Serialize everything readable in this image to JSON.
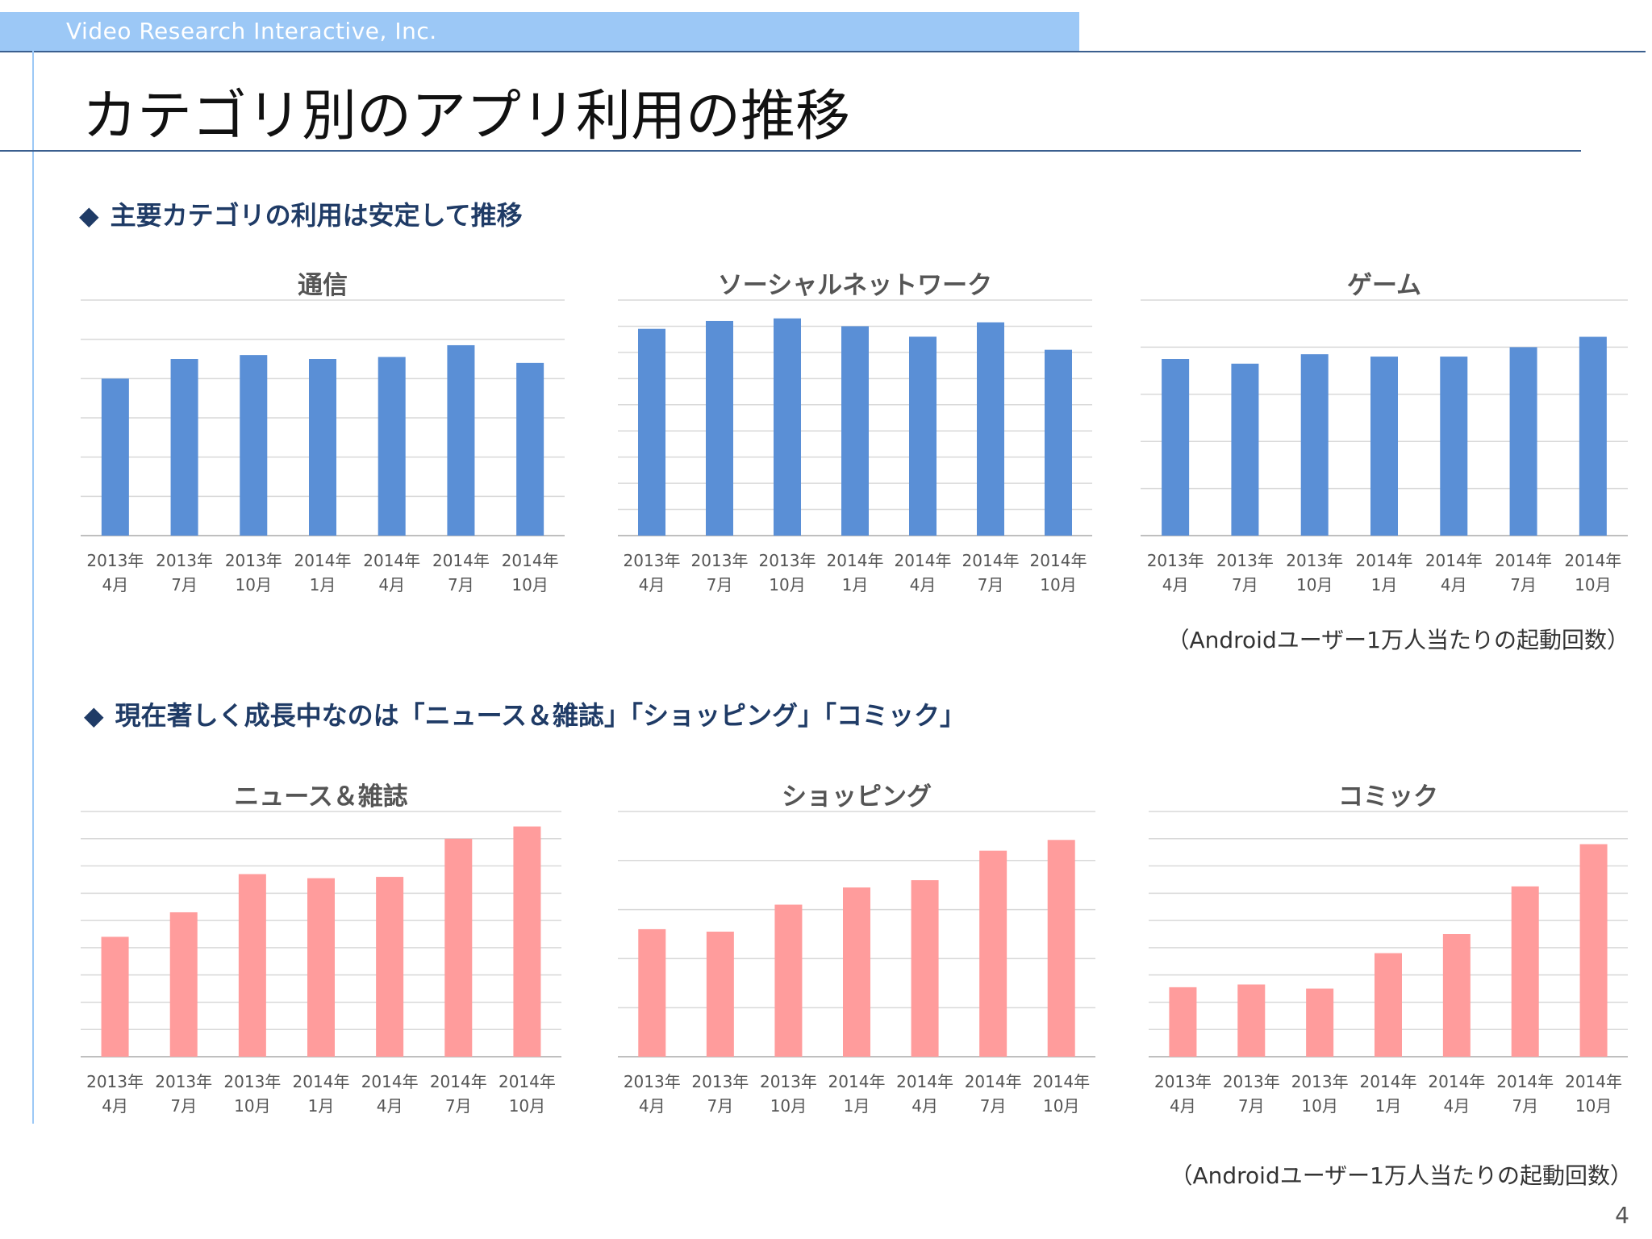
{
  "header": {
    "company": "Video Research Interactive, Inc.",
    "title": "カテゴリ別のアプリ利用の推移"
  },
  "sections": [
    {
      "bullet": "◆",
      "heading": "主要カテゴリの利用は安定して推移",
      "note": "（Androidユーザー1万人当たりの起動回数）"
    },
    {
      "bullet": "◆",
      "heading": "現在著しく成長中なのは「ニュース＆雑誌」「ショッピング」「コミック」",
      "note": "（Androidユーザー1万人当たりの起動回数）"
    }
  ],
  "page_number": "4",
  "colors": {
    "blue_bar": "#5a8fd6",
    "pink_bar": "#ff9c9c",
    "grid": "#d9d9d9",
    "axis": "#bfbfbf"
  },
  "chart_data": [
    {
      "type": "bar",
      "title": "通信",
      "categories": [
        [
          "2013年",
          "4月"
        ],
        [
          "2013年",
          "7月"
        ],
        [
          "2013年",
          "10月"
        ],
        [
          "2014年",
          "1月"
        ],
        [
          "2014年",
          "4月"
        ],
        [
          "2014年",
          "7月"
        ],
        [
          "2014年",
          "10月"
        ]
      ],
      "values": [
        4.0,
        4.5,
        4.6,
        4.5,
        4.55,
        4.85,
        4.4
      ],
      "ylim": [
        0,
        6
      ],
      "grid_lines": 6,
      "color": "blue"
    },
    {
      "type": "bar",
      "title": "ソーシャルネットワーク",
      "categories": [
        [
          "2013年",
          "4月"
        ],
        [
          "2013年",
          "7月"
        ],
        [
          "2013年",
          "10月"
        ],
        [
          "2014年",
          "1月"
        ],
        [
          "2014年",
          "4月"
        ],
        [
          "2014年",
          "7月"
        ],
        [
          "2014年",
          "10月"
        ]
      ],
      "values": [
        7.9,
        8.2,
        8.3,
        8.0,
        7.6,
        8.15,
        7.1
      ],
      "ylim": [
        0,
        9
      ],
      "grid_lines": 9,
      "color": "blue"
    },
    {
      "type": "bar",
      "title": "ゲーム",
      "categories": [
        [
          "2013年",
          "4月"
        ],
        [
          "2013年",
          "7月"
        ],
        [
          "2013年",
          "10月"
        ],
        [
          "2014年",
          "1月"
        ],
        [
          "2014年",
          "4月"
        ],
        [
          "2014年",
          "7月"
        ],
        [
          "2014年",
          "10月"
        ]
      ],
      "values": [
        3.75,
        3.65,
        3.85,
        3.8,
        3.8,
        4.0,
        4.22
      ],
      "ylim": [
        0,
        5
      ],
      "grid_lines": 5,
      "color": "blue"
    },
    {
      "type": "bar",
      "title": "ニュース＆雑誌",
      "categories": [
        [
          "2013年",
          "4月"
        ],
        [
          "2013年",
          "7月"
        ],
        [
          "2013年",
          "10月"
        ],
        [
          "2014年",
          "1月"
        ],
        [
          "2014年",
          "4月"
        ],
        [
          "2014年",
          "7月"
        ],
        [
          "2014年",
          "10月"
        ]
      ],
      "values": [
        4.4,
        5.3,
        6.7,
        6.55,
        6.6,
        8.0,
        8.45
      ],
      "ylim": [
        0,
        9
      ],
      "grid_lines": 9,
      "color": "pink"
    },
    {
      "type": "bar",
      "title": "ショッピング",
      "categories": [
        [
          "2013年",
          "4月"
        ],
        [
          "2013年",
          "7月"
        ],
        [
          "2013年",
          "10月"
        ],
        [
          "2014年",
          "1月"
        ],
        [
          "2014年",
          "4月"
        ],
        [
          "2014年",
          "7月"
        ],
        [
          "2014年",
          "10月"
        ]
      ],
      "values": [
        2.6,
        2.55,
        3.1,
        3.45,
        3.6,
        4.2,
        4.42
      ],
      "ylim": [
        0,
        5
      ],
      "grid_lines": 5,
      "color": "pink"
    },
    {
      "type": "bar",
      "title": "コミック",
      "categories": [
        [
          "2013年",
          "4月"
        ],
        [
          "2013年",
          "7月"
        ],
        [
          "2013年",
          "10月"
        ],
        [
          "2014年",
          "1月"
        ],
        [
          "2014年",
          "4月"
        ],
        [
          "2014年",
          "7月"
        ],
        [
          "2014年",
          "10月"
        ]
      ],
      "values": [
        2.55,
        2.65,
        2.5,
        3.8,
        4.5,
        6.25,
        7.8
      ],
      "ylim": [
        0,
        9
      ],
      "grid_lines": 9,
      "color": "pink"
    }
  ]
}
